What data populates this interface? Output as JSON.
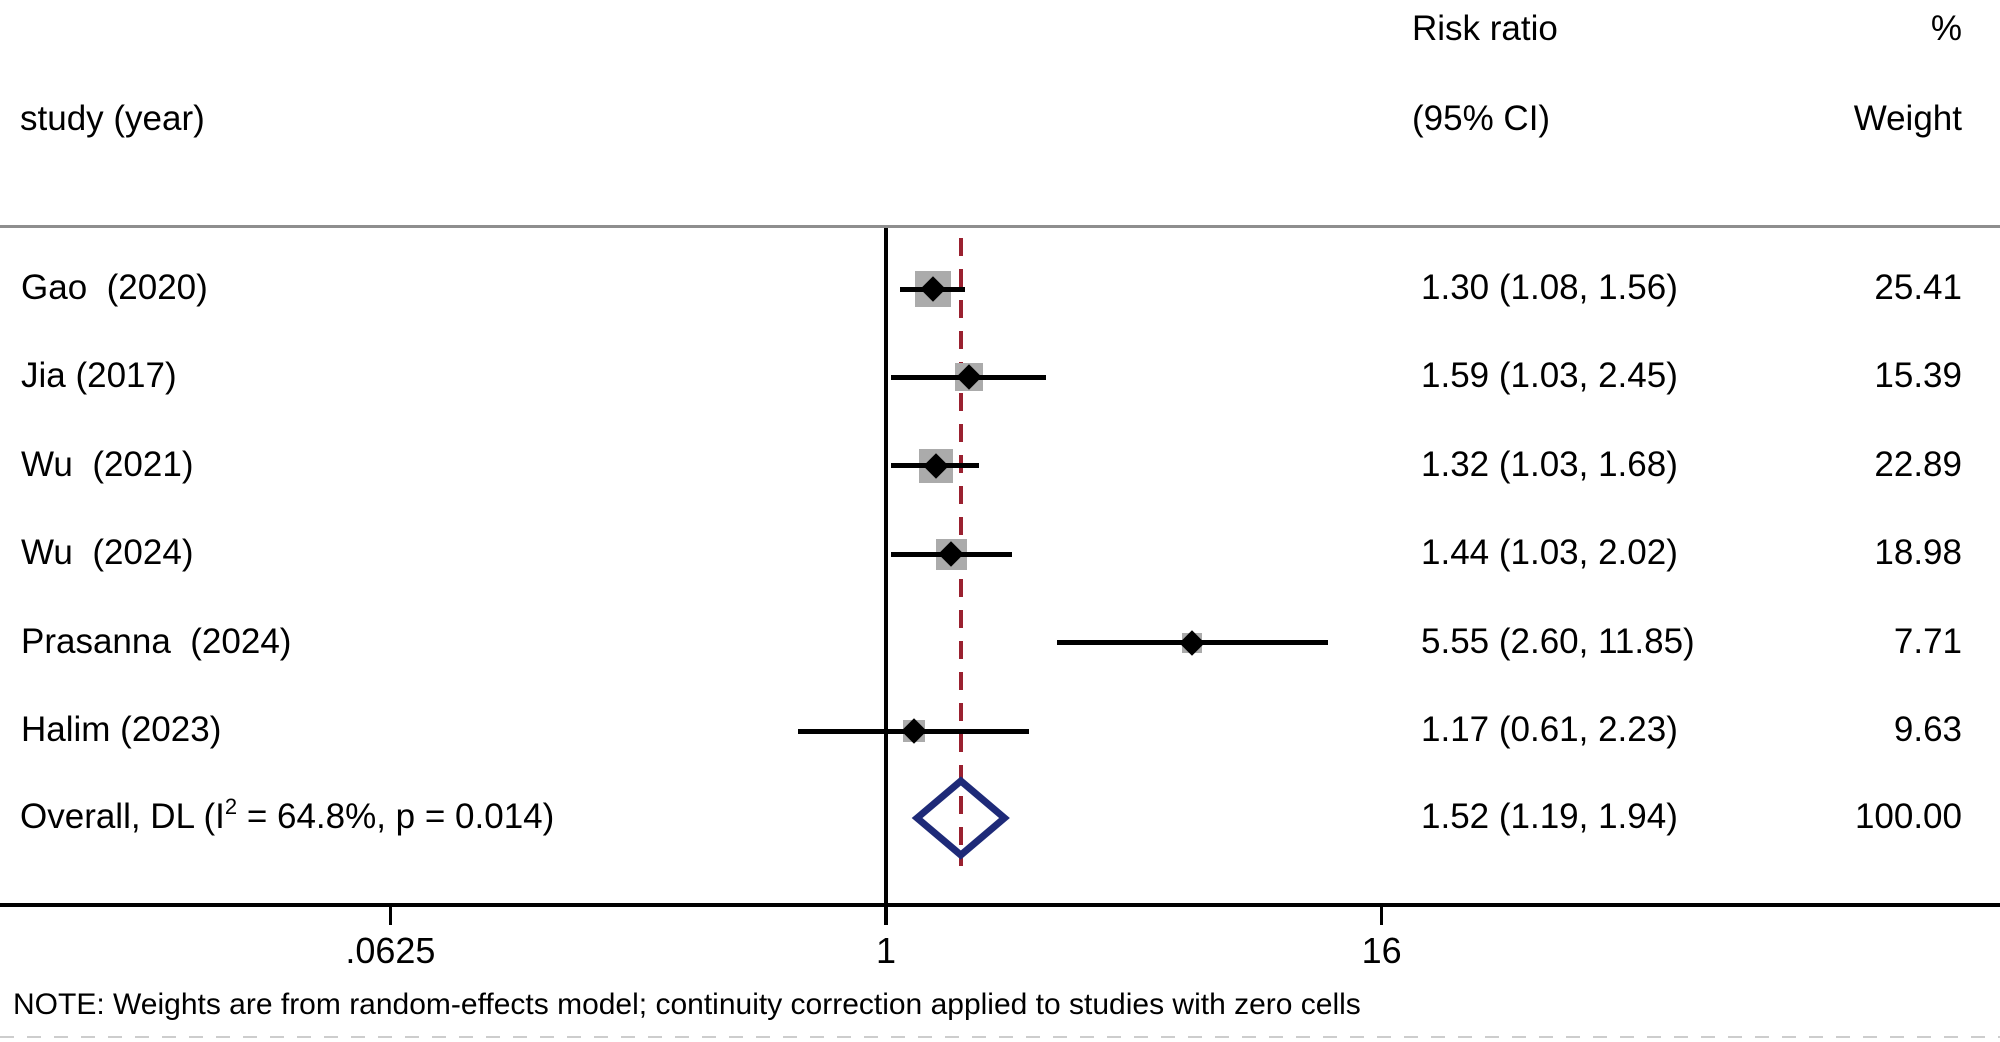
{
  "headers": {
    "study_col": "study (year)",
    "effect_col_line1": "Risk ratio",
    "effect_col_line2": "(95% CI)",
    "weight_col_line1": "%",
    "weight_col_line2": "Weight"
  },
  "note": "NOTE: Weights are from random-effects model; continuity correction applied to studies with zero cells",
  "chart_data": {
    "type": "forest",
    "effect_measure": "Risk ratio",
    "x_scale": "log",
    "x_ticks": [
      ".0625",
      "1",
      "16"
    ],
    "x_tick_values": [
      0.0625,
      1,
      16
    ],
    "reference_value": 1,
    "legend_position": "none",
    "grid": false,
    "studies": [
      {
        "label": "Gao  (2020)",
        "rr": 1.3,
        "ci_low": 1.08,
        "ci_high": 1.56,
        "weight": 25.41,
        "rr_ci_text": "1.30 (1.08, 1.56)",
        "weight_text": "25.41"
      },
      {
        "label": "Jia (2017)",
        "rr": 1.59,
        "ci_low": 1.03,
        "ci_high": 2.45,
        "weight": 15.39,
        "rr_ci_text": "1.59 (1.03, 2.45)",
        "weight_text": "15.39"
      },
      {
        "label": "Wu  (2021)",
        "rr": 1.32,
        "ci_low": 1.03,
        "ci_high": 1.68,
        "weight": 22.89,
        "rr_ci_text": "1.32 (1.03, 1.68)",
        "weight_text": "22.89"
      },
      {
        "label": "Wu  (2024)",
        "rr": 1.44,
        "ci_low": 1.03,
        "ci_high": 2.02,
        "weight": 18.98,
        "rr_ci_text": "1.44 (1.03, 2.02)",
        "weight_text": "18.98"
      },
      {
        "label": "Prasanna  (2024)",
        "rr": 5.55,
        "ci_low": 2.6,
        "ci_high": 11.85,
        "weight": 7.71,
        "rr_ci_text": "5.55 (2.60, 11.85)",
        "weight_text": "7.71"
      },
      {
        "label": "Halim (2023)",
        "rr": 1.17,
        "ci_low": 0.61,
        "ci_high": 2.23,
        "weight": 9.63,
        "rr_ci_text": "1.17 (0.61, 2.23)",
        "weight_text": "9.63"
      }
    ],
    "overall": {
      "label_prefix": "Overall, DL (I",
      "label_sup": "2",
      "label_suffix": " = 64.8%, p = 0.014)",
      "model": "DL",
      "i_squared": "64.8%",
      "p_value": "0.014",
      "rr": 1.52,
      "ci_low": 1.19,
      "ci_high": 1.94,
      "weight": 100.0,
      "rr_ci_text": "1.52 (1.19, 1.94)",
      "weight_text": "100.00"
    },
    "colors": {
      "square": "#ababab",
      "marker": "#000000",
      "ci_line": "#000000",
      "axis": "#000000",
      "divider": "#8e8e8e",
      "overall_dash_line": "#9a2130",
      "overall_diamond": "#1e2a78"
    }
  }
}
